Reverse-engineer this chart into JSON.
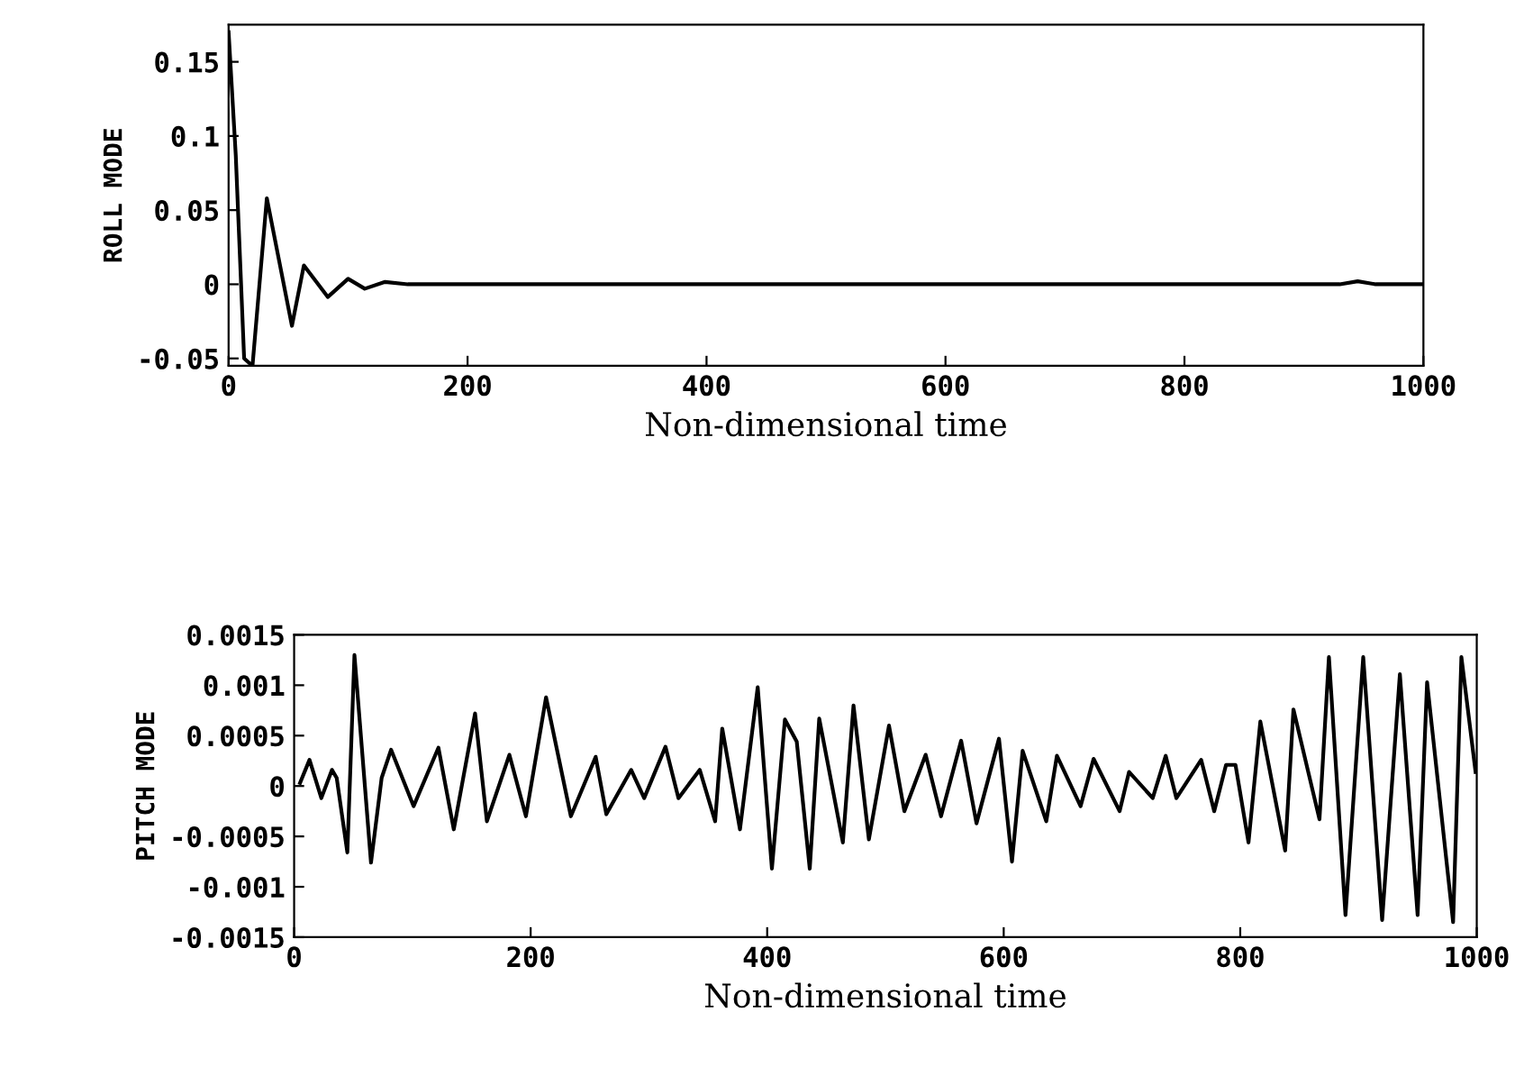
{
  "chart_data": [
    {
      "type": "line",
      "xlabel": "Non-dimensional time",
      "ylabel": "ROLL MODE",
      "xlim": [
        0,
        1000
      ],
      "ylim": [
        -0.055,
        0.175
      ],
      "xticks": [
        0,
        200,
        400,
        600,
        800,
        1000
      ],
      "yticks": [
        -0.05,
        0,
        0.05,
        0.1,
        0.15
      ],
      "grid": false,
      "legend": false,
      "series": [
        {
          "color": "#000000",
          "x": [
            0,
            6,
            13,
            20,
            32,
            53,
            63,
            83,
            100,
            114,
            131,
            150,
            400,
            930,
            945,
            960,
            1000
          ],
          "values": [
            0.17,
            0.087,
            -0.05,
            -0.055,
            0.058,
            -0.028,
            0.0127,
            -0.0086,
            0.0037,
            -0.003,
            0.0016,
            0,
            0,
            0,
            0.002,
            0,
            0
          ]
        }
      ]
    },
    {
      "type": "line",
      "xlabel": "Non-dimensional time",
      "ylabel": "PITCH MODE",
      "xlim": [
        0,
        1000
      ],
      "ylim": [
        -0.0015,
        0.0015
      ],
      "xticks": [
        0,
        200,
        400,
        600,
        800,
        1000
      ],
      "yticks": [
        -0.0015,
        -0.001,
        -0.0005,
        0,
        0.0005,
        0.001,
        0.0015
      ],
      "grid": false,
      "legend": false,
      "series": [
        {
          "color": "#000000",
          "x": [
            5,
            13,
            23,
            32,
            36,
            45,
            51,
            65,
            74,
            82,
            101,
            122,
            135,
            153,
            163,
            182,
            196,
            213,
            234,
            255,
            264,
            285,
            296,
            314,
            325,
            343,
            356,
            362,
            377,
            392,
            404,
            415,
            425,
            436,
            444,
            464,
            473,
            486,
            503,
            516,
            534,
            547,
            564,
            577,
            596,
            607,
            616,
            636,
            645,
            665,
            676,
            698,
            706,
            726,
            737,
            746,
            767,
            778,
            788,
            796,
            807,
            817,
            838,
            845,
            867,
            875,
            889,
            904,
            920,
            935,
            950,
            958,
            980,
            987,
            999
          ],
          "values": [
            3e-05,
            0.00026,
            -0.00012,
            0.00016,
            8e-05,
            -0.00066,
            0.0013,
            -0.00076,
            8e-05,
            0.00036,
            -0.0002,
            0.00038,
            -0.00043,
            0.00072,
            -0.00035,
            0.00031,
            -0.0003,
            0.00088,
            -0.0003,
            0.00029,
            -0.00028,
            0.00016,
            -0.00012,
            0.00039,
            -0.00012,
            0.00016,
            -0.00035,
            0.00057,
            -0.00043,
            0.00098,
            -0.00082,
            0.00066,
            0.00044,
            -0.00082,
            0.00067,
            -0.00056,
            0.0008,
            -0.00053,
            0.0006,
            -0.00025,
            0.00031,
            -0.0003,
            0.00045,
            -0.00037,
            0.00047,
            -0.00075,
            0.00035,
            -0.00035,
            0.0003,
            -0.0002,
            0.00027,
            -0.00025,
            0.00014,
            -0.00012,
            0.0003,
            -0.00012,
            0.00026,
            -0.00025,
            0.00021,
            0.00021,
            -0.00056,
            0.00064,
            -0.00064,
            0.00076,
            -0.00033,
            0.00128,
            -0.00128,
            0.00128,
            -0.00133,
            0.00111,
            -0.00128,
            0.00103,
            -0.00135,
            0.00128,
            0.00014
          ]
        }
      ]
    }
  ]
}
